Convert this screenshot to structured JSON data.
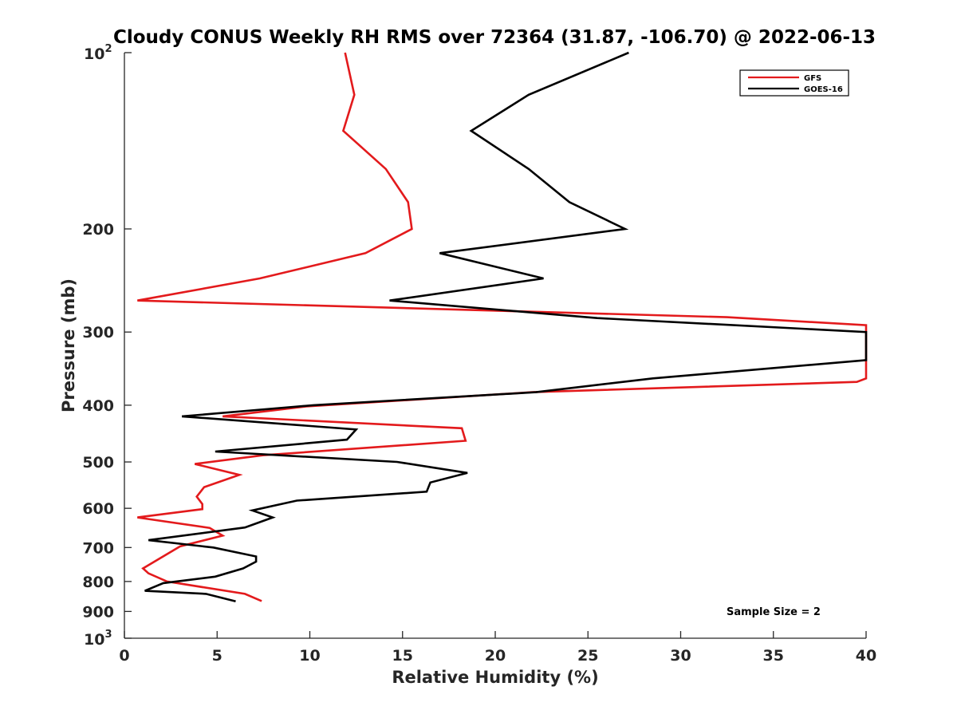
{
  "chart_data": {
    "type": "line",
    "title": "Cloudy CONUS Weekly RH RMS over 72364 (31.87, -106.70) @ 2022-06-13",
    "xlabel": "Relative Humidity (%)",
    "ylabel": "Pressure (mb)",
    "xlim": [
      0,
      40
    ],
    "ylim": [
      100,
      1000
    ],
    "y_scale": "log",
    "y_reversed": true,
    "x_ticks": [
      "0",
      "5",
      "10",
      "15",
      "20",
      "25",
      "30",
      "35",
      "40"
    ],
    "y_ticks": [
      {
        "value": 100,
        "base": "10",
        "exp": "2"
      },
      {
        "value": 200,
        "base": "200",
        "exp": ""
      },
      {
        "value": 300,
        "base": "300",
        "exp": ""
      },
      {
        "value": 400,
        "base": "400",
        "exp": ""
      },
      {
        "value": 500,
        "base": "500",
        "exp": ""
      },
      {
        "value": 600,
        "base": "600",
        "exp": ""
      },
      {
        "value": 700,
        "base": "700",
        "exp": ""
      },
      {
        "value": 800,
        "base": "800",
        "exp": ""
      },
      {
        "value": 900,
        "base": "900",
        "exp": ""
      },
      {
        "value": 1000,
        "base": "10",
        "exp": "3"
      }
    ],
    "grid": false,
    "legend_position": "top-right",
    "annotation": "Sample Size = 2",
    "series": [
      {
        "name": "GFS",
        "color": "#e31a1c",
        "points": [
          {
            "x": 11.9,
            "y": 100
          },
          {
            "x": 12.4,
            "y": 118
          },
          {
            "x": 11.8,
            "y": 136
          },
          {
            "x": 14.1,
            "y": 158
          },
          {
            "x": 15.3,
            "y": 180
          },
          {
            "x": 15.5,
            "y": 200
          },
          {
            "x": 13.0,
            "y": 220
          },
          {
            "x": 7.3,
            "y": 243
          },
          {
            "x": 0.7,
            "y": 265
          },
          {
            "x": 32.5,
            "y": 283
          },
          {
            "x": 40.0,
            "y": 292
          },
          {
            "x": 40.0,
            "y": 360
          },
          {
            "x": 39.5,
            "y": 365
          },
          {
            "x": 22.0,
            "y": 380
          },
          {
            "x": 9.8,
            "y": 402
          },
          {
            "x": 5.3,
            "y": 418
          },
          {
            "x": 18.2,
            "y": 438
          },
          {
            "x": 18.4,
            "y": 460
          },
          {
            "x": 7.5,
            "y": 487
          },
          {
            "x": 3.8,
            "y": 504
          },
          {
            "x": 6.2,
            "y": 526
          },
          {
            "x": 4.3,
            "y": 552
          },
          {
            "x": 3.9,
            "y": 573
          },
          {
            "x": 4.2,
            "y": 590
          },
          {
            "x": 4.2,
            "y": 602
          },
          {
            "x": 0.7,
            "y": 622
          },
          {
            "x": 4.6,
            "y": 648
          },
          {
            "x": 5.3,
            "y": 668
          },
          {
            "x": 3.0,
            "y": 697
          },
          {
            "x": 1.0,
            "y": 760
          },
          {
            "x": 1.3,
            "y": 775
          },
          {
            "x": 2.3,
            "y": 800
          },
          {
            "x": 6.5,
            "y": 840
          },
          {
            "x": 7.4,
            "y": 864
          }
        ]
      },
      {
        "name": "GOES-16",
        "color": "#000000",
        "points": [
          {
            "x": 27.2,
            "y": 100
          },
          {
            "x": 21.8,
            "y": 118
          },
          {
            "x": 18.7,
            "y": 136
          },
          {
            "x": 21.8,
            "y": 158
          },
          {
            "x": 24.0,
            "y": 180
          },
          {
            "x": 27.0,
            "y": 200
          },
          {
            "x": 17.0,
            "y": 220
          },
          {
            "x": 22.6,
            "y": 243
          },
          {
            "x": 14.3,
            "y": 265
          },
          {
            "x": 25.5,
            "y": 284
          },
          {
            "x": 40.0,
            "y": 300
          },
          {
            "x": 40.0,
            "y": 335
          },
          {
            "x": 28.5,
            "y": 360
          },
          {
            "x": 22.2,
            "y": 380
          },
          {
            "x": 10.2,
            "y": 400
          },
          {
            "x": 3.1,
            "y": 418
          },
          {
            "x": 12.5,
            "y": 440
          },
          {
            "x": 12.0,
            "y": 458
          },
          {
            "x": 4.9,
            "y": 480
          },
          {
            "x": 14.7,
            "y": 500
          },
          {
            "x": 18.5,
            "y": 522
          },
          {
            "x": 16.5,
            "y": 542
          },
          {
            "x": 16.3,
            "y": 562
          },
          {
            "x": 9.3,
            "y": 582
          },
          {
            "x": 6.9,
            "y": 605
          },
          {
            "x": 8.0,
            "y": 622
          },
          {
            "x": 6.5,
            "y": 647
          },
          {
            "x": 1.3,
            "y": 680
          },
          {
            "x": 4.8,
            "y": 700
          },
          {
            "x": 7.1,
            "y": 725
          },
          {
            "x": 7.1,
            "y": 740
          },
          {
            "x": 6.4,
            "y": 760
          },
          {
            "x": 4.9,
            "y": 785
          },
          {
            "x": 2.1,
            "y": 805
          },
          {
            "x": 1.1,
            "y": 830
          },
          {
            "x": 4.4,
            "y": 840
          },
          {
            "x": 6.0,
            "y": 865
          }
        ]
      }
    ]
  }
}
